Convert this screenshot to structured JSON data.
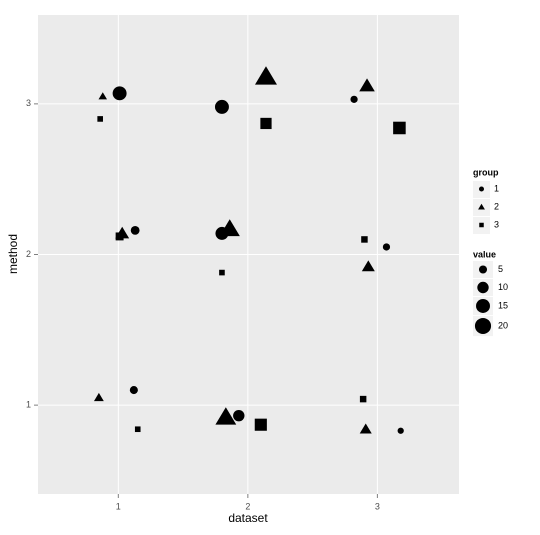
{
  "chart_data": {
    "type": "scatter",
    "x_label": "dataset",
    "y_label": "method",
    "xlim": [
      0.38,
      3.63
    ],
    "ylim": [
      0.41,
      3.59
    ],
    "xticks": [
      1,
      2,
      3
    ],
    "yticks": [
      1,
      2,
      3
    ],
    "grid": true,
    "legend_position": "right",
    "shape_legend_title": "group",
    "series": [
      {
        "name": "1",
        "shape": "circle",
        "color": "#000000",
        "x": [
          1.01,
          1.8,
          2.82,
          1.13,
          1.8,
          3.07,
          1.12,
          1.93,
          3.18
        ],
        "y": [
          3.07,
          2.98,
          3.03,
          2.16,
          2.14,
          2.05,
          1.1,
          0.93,
          0.83
        ],
        "size": [
          15,
          15,
          4,
          6,
          13,
          4,
          5,
          10,
          3
        ]
      },
      {
        "name": "2",
        "shape": "triangle",
        "color": "#000000",
        "x": [
          0.88,
          2.14,
          2.92,
          1.03,
          1.86,
          2.93,
          0.85,
          1.83,
          2.91
        ],
        "y": [
          3.05,
          3.18,
          3.12,
          2.14,
          2.17,
          1.92,
          1.05,
          0.92,
          0.84
        ],
        "size": [
          3,
          20,
          10,
          8,
          17,
          7,
          4,
          18,
          6
        ]
      },
      {
        "name": "3",
        "shape": "square",
        "color": "#000000",
        "x": [
          0.86,
          2.14,
          3.17,
          1.01,
          1.8,
          2.9,
          1.15,
          2.1,
          2.89
        ],
        "y": [
          2.9,
          2.87,
          2.84,
          2.12,
          1.88,
          2.1,
          0.84,
          0.87,
          1.04
        ],
        "size": [
          3,
          12,
          15,
          6,
          3,
          4,
          3,
          14,
          4
        ]
      }
    ],
    "size_legend": {
      "title": "value",
      "values": [
        5,
        10,
        15,
        20
      ]
    }
  }
}
